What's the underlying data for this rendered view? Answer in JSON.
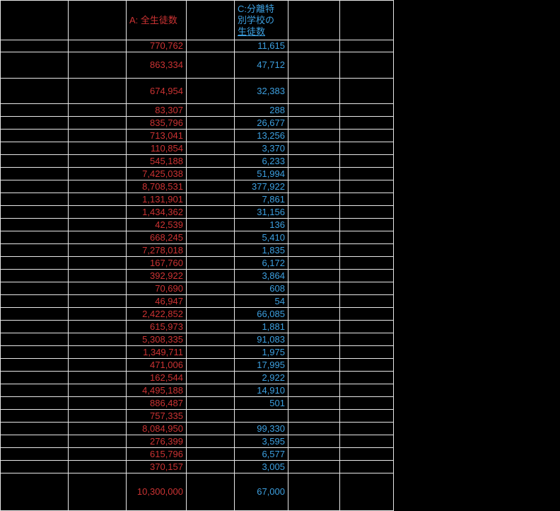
{
  "header": {
    "a": "A: 全生徒数",
    "c_full": "C:分離特別学校の生徒数",
    "c_lines": [
      "C:分離特",
      "別学校の",
      "生徒数"
    ]
  },
  "rows": [
    {
      "a": "770,762",
      "c": "11,615"
    },
    {
      "a": "863,334",
      "c": "47,712"
    },
    {
      "a": "674,954",
      "c": "32,383"
    },
    {
      "a": "83,307",
      "c": "288"
    },
    {
      "a": "835,796",
      "c": "26,677"
    },
    {
      "a": "713,041",
      "c": "13,256"
    },
    {
      "a": "110,854",
      "c": "3,370"
    },
    {
      "a": "545,188",
      "c": "6,233"
    },
    {
      "a": "7,425,038",
      "c": "51,994"
    },
    {
      "a": "8,708,531",
      "c": "377,922"
    },
    {
      "a": "1,131,901",
      "c": "7,861"
    },
    {
      "a": "1,434,362",
      "c": "31,156"
    },
    {
      "a": "42,539",
      "c": "136"
    },
    {
      "a": "668,245",
      "c": "5,410"
    },
    {
      "a": "7,278,018",
      "c": "1,835"
    },
    {
      "a": "167,760",
      "c": "6,172"
    },
    {
      "a": "392,922",
      "c": "3,864"
    },
    {
      "a": "70,690",
      "c": "608"
    },
    {
      "a": "46,947",
      "c": "54"
    },
    {
      "a": "2,422,852",
      "c": "66,085"
    },
    {
      "a": "615,973",
      "c": "1,881"
    },
    {
      "a": "5,308,335",
      "c": "91,083"
    },
    {
      "a": "1,349,711",
      "c": "1,975"
    },
    {
      "a": "471,006",
      "c": "17,995"
    },
    {
      "a": "162,544",
      "c": "2,922"
    },
    {
      "a": "4,495,188",
      "c": "14,910"
    },
    {
      "a": "886,487",
      "c": "501"
    },
    {
      "a": "757,335",
      "c": ""
    },
    {
      "a": "8,084,950",
      "c": "99,330"
    },
    {
      "a": "276,399",
      "c": "3,595"
    },
    {
      "a": "615,796",
      "c": "6,577"
    },
    {
      "a": "370,157",
      "c": "3,005"
    }
  ],
  "total": {
    "a": "10,300,000",
    "c": "67,000"
  },
  "colors": {
    "text_red": "#cc3333",
    "text_blue": "#3da0e0",
    "gridline": "#e8e8e8",
    "background": "#000000"
  }
}
